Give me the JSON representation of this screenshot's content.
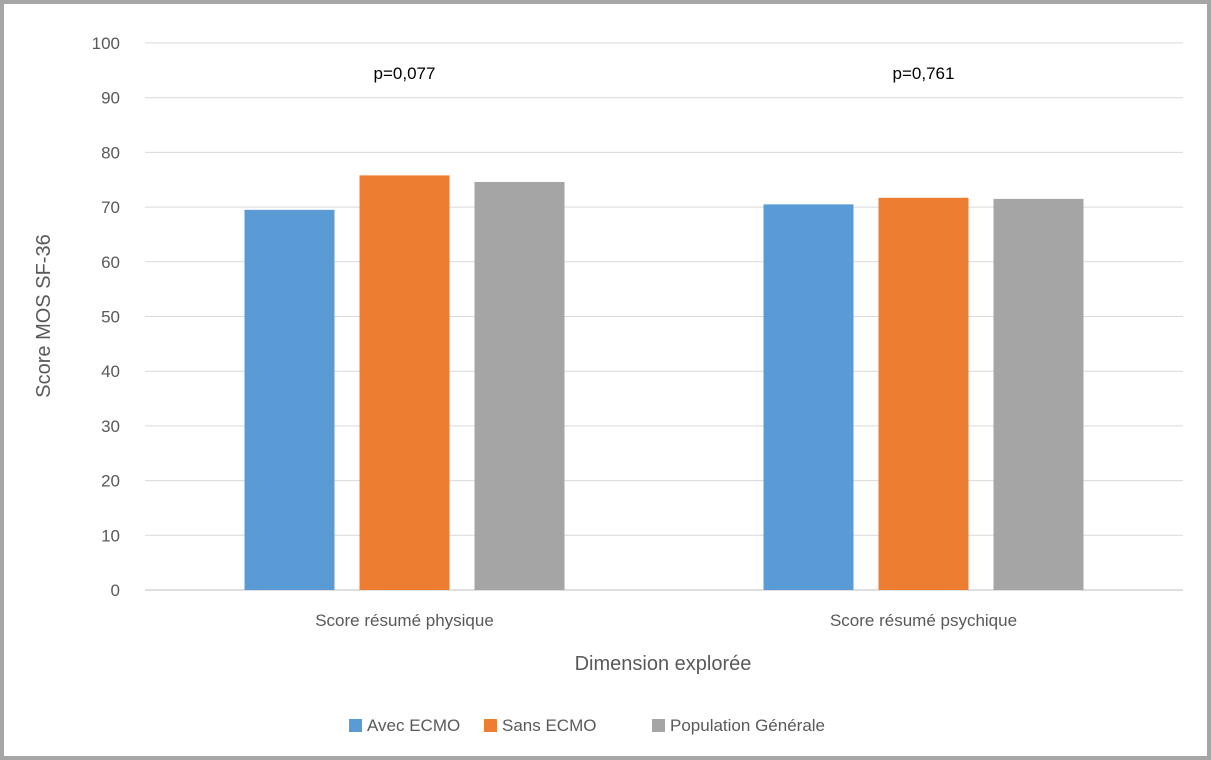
{
  "chart_data": {
    "type": "bar",
    "categories": [
      "Score résumé physique",
      "Score résumé psychique"
    ],
    "series": [
      {
        "name": "Avec ECMO",
        "values": [
          69.5,
          70.5
        ],
        "color": "#5b9bd5"
      },
      {
        "name": "Sans ECMO",
        "values": [
          75.8,
          71.7
        ],
        "color": "#ed7d31"
      },
      {
        "name": "Population Générale",
        "values": [
          74.6,
          71.5
        ],
        "color": "#a5a5a5"
      }
    ],
    "annotations": [
      "p=0,077",
      "p=0,761"
    ],
    "xlabel": "Dimension explorée",
    "ylabel": "Score MOS SF-36",
    "ylim": [
      0,
      100
    ],
    "yticks": [
      "0",
      "10",
      "20",
      "30",
      "40",
      "50",
      "60",
      "70",
      "80",
      "90",
      "100"
    ],
    "grid": true,
    "legend_position": "bottom"
  }
}
